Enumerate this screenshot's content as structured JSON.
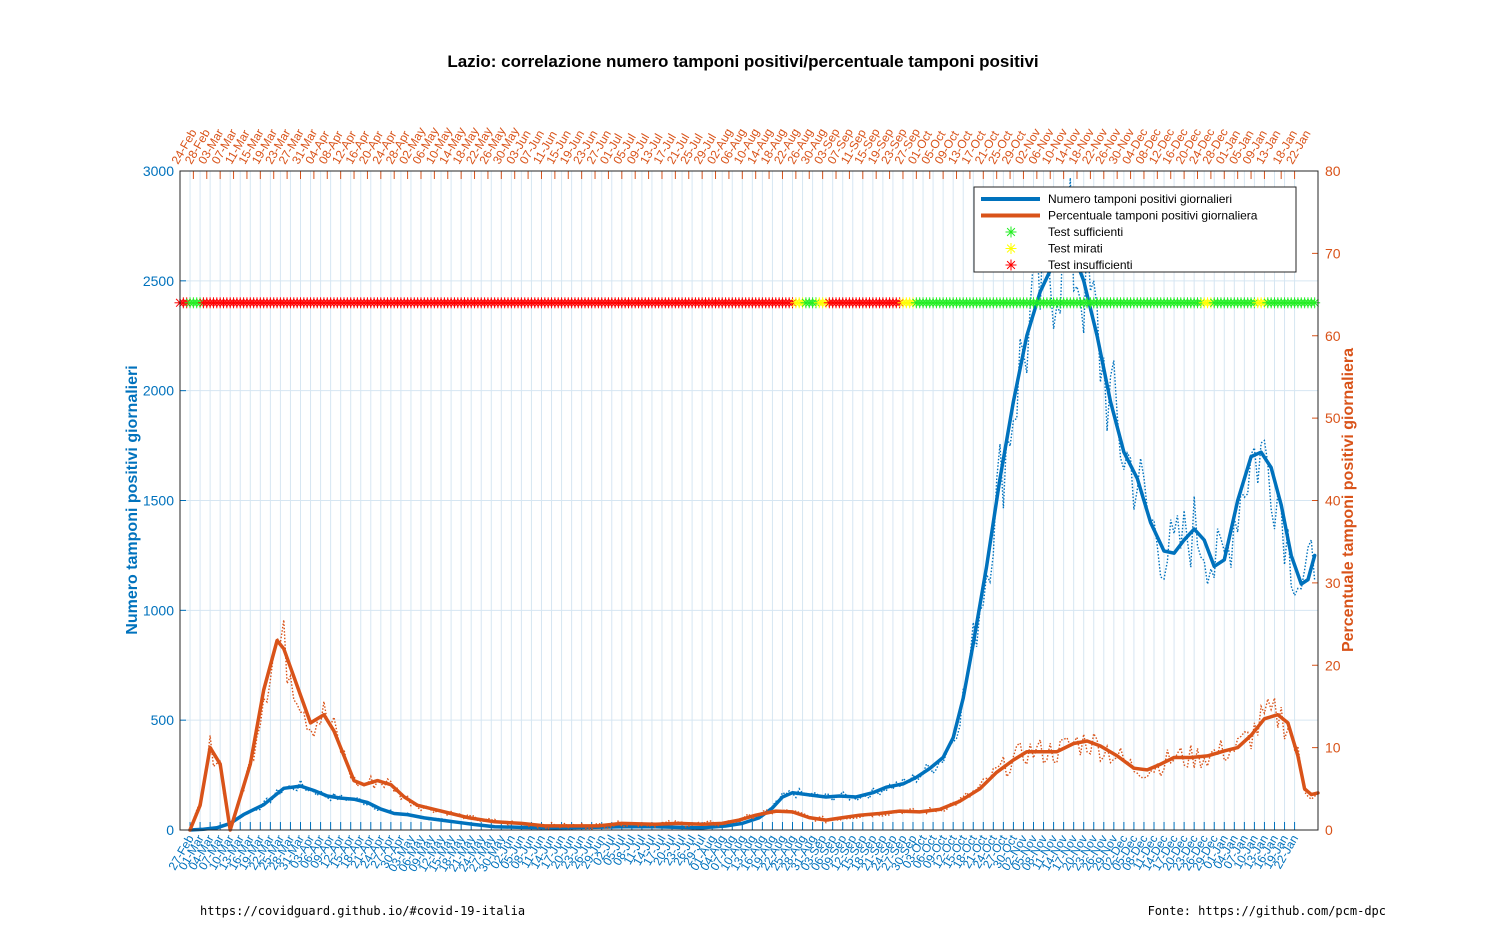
{
  "footer": {
    "left": "https://covidguard.github.io/#covid-19-italia",
    "right": "Fonte: https://github.com/pcm-dpc"
  },
  "colors": {
    "positivi": "#0072BD",
    "percentuale": "#D95319",
    "sufficienti": "#22ee22",
    "mirati": "#ffff00",
    "insufficienti": "#ff0000",
    "grid": "#d6e6f2"
  },
  "chart_data": {
    "type": "line",
    "title": "Lazio: correlazione numero tamponi positivi/percentuale tamponi positivi",
    "ylabel_left": "Numero tamponi positivi giornalieri",
    "ylabel_right": "Percentuale tamponi positivi giornaliera",
    "ylim_left": [
      0,
      3000
    ],
    "ylim_right": [
      0,
      80
    ],
    "yticks_left": [
      "0",
      "500",
      "1000",
      "1500",
      "2000",
      "2500",
      "3000"
    ],
    "yticks_right": [
      "0",
      "10",
      "20",
      "30",
      "40",
      "50",
      "60",
      "70",
      "80"
    ],
    "x_start": "2020-02-24",
    "x_end": "2021-01-22",
    "grid": true,
    "legend_position": "top-right",
    "legend": [
      "Numero tamponi positivi giornalieri",
      "Percentuale tamponi positivi giornaliera",
      "Test sufficienti",
      "Test mirati",
      "Test insufficienti"
    ],
    "xticks_bottom": [
      "27-Feb",
      "01-Mar",
      "04-Mar",
      "07-Mar",
      "10-Mar",
      "13-Mar",
      "16-Mar",
      "19-Mar",
      "22-Mar",
      "25-Mar",
      "28-Mar",
      "31-Mar",
      "03-Apr",
      "06-Apr",
      "09-Apr",
      "12-Apr",
      "15-Apr",
      "18-Apr",
      "21-Apr",
      "24-Apr",
      "27-Apr",
      "30-Apr",
      "03-May",
      "06-May",
      "09-May",
      "12-May",
      "15-May",
      "18-May",
      "21-May",
      "24-May",
      "27-May",
      "30-May",
      "02-Jun",
      "05-Jun",
      "08-Jun",
      "11-Jun",
      "14-Jun",
      "17-Jun",
      "20-Jun",
      "23-Jun",
      "26-Jun",
      "29-Jun",
      "02-Jul",
      "05-Jul",
      "08-Jul",
      "11-Jul",
      "14-Jul",
      "17-Jul",
      "20-Jul",
      "23-Jul",
      "26-Jul",
      "29-Jul",
      "01-Aug",
      "04-Aug",
      "07-Aug",
      "10-Aug",
      "13-Aug",
      "16-Aug",
      "19-Aug",
      "22-Aug",
      "25-Aug",
      "28-Aug",
      "31-Aug",
      "03-Sep",
      "06-Sep",
      "09-Sep",
      "12-Sep",
      "15-Sep",
      "18-Sep",
      "21-Sep",
      "24-Sep",
      "27-Sep",
      "30-Sep",
      "03-Oct",
      "06-Oct",
      "09-Oct",
      "12-Oct",
      "15-Oct",
      "18-Oct",
      "21-Oct",
      "24-Oct",
      "27-Oct",
      "30-Oct",
      "02-Nov",
      "05-Nov",
      "08-Nov",
      "11-Nov",
      "14-Nov",
      "17-Nov",
      "20-Nov",
      "23-Nov",
      "26-Nov",
      "29-Nov",
      "02-Dec",
      "05-Dec",
      "08-Dec",
      "11-Dec",
      "14-Dec",
      "17-Dec",
      "20-Dec",
      "23-Dec",
      "26-Dec",
      "29-Dec",
      "01-Jan",
      "04-Jan",
      "07-Jan",
      "10-Jan",
      "13-Jan",
      "16-Jan",
      "19-Jan",
      "22-Jan"
    ],
    "xticks_top": [
      "24-Feb",
      "28-Feb",
      "03-Mar",
      "07-Mar",
      "11-Mar",
      "15-Mar",
      "19-Mar",
      "23-Mar",
      "27-Mar",
      "31-Mar",
      "04-Apr",
      "08-Apr",
      "12-Apr",
      "16-Apr",
      "20-Apr",
      "24-Apr",
      "28-Apr",
      "02-May",
      "06-May",
      "10-May",
      "14-May",
      "18-May",
      "22-May",
      "26-May",
      "30-May",
      "03-Jun",
      "07-Jun",
      "11-Jun",
      "15-Jun",
      "19-Jun",
      "23-Jun",
      "27-Jun",
      "01-Jul",
      "05-Jul",
      "09-Jul",
      "13-Jul",
      "17-Jul",
      "21-Jul",
      "25-Jul",
      "29-Jul",
      "02-Aug",
      "06-Aug",
      "10-Aug",
      "14-Aug",
      "18-Aug",
      "22-Aug",
      "26-Aug",
      "30-Aug",
      "03-Sep",
      "07-Sep",
      "11-Sep",
      "15-Sep",
      "19-Sep",
      "23-Sep",
      "27-Sep",
      "01-Oct",
      "05-Oct",
      "09-Oct",
      "13-Oct",
      "17-Oct",
      "21-Oct",
      "25-Oct",
      "29-Oct",
      "02-Nov",
      "06-Nov",
      "10-Nov",
      "14-Nov",
      "18-Nov",
      "22-Nov",
      "26-Nov",
      "30-Nov",
      "04-Dec",
      "08-Dec",
      "12-Dec",
      "16-Dec",
      "20-Dec",
      "24-Dec",
      "28-Dec",
      "01-Jan",
      "05-Jan",
      "09-Jan",
      "13-Jan",
      "18-Jan",
      "22-Jan"
    ],
    "series": [
      {
        "name": "Numero tamponi positivi giornalieri",
        "axis": "left",
        "points": [
          [
            "2020-02-27",
            0
          ],
          [
            "2020-03-02",
            3
          ],
          [
            "2020-03-06",
            10
          ],
          [
            "2020-03-10",
            30
          ],
          [
            "2020-03-14",
            70
          ],
          [
            "2020-03-20",
            115
          ],
          [
            "2020-03-26",
            190
          ],
          [
            "2020-03-31",
            200
          ],
          [
            "2020-04-04",
            180
          ],
          [
            "2020-04-08",
            155
          ],
          [
            "2020-04-12",
            145
          ],
          [
            "2020-04-16",
            140
          ],
          [
            "2020-04-20",
            125
          ],
          [
            "2020-04-24",
            95
          ],
          [
            "2020-04-28",
            75
          ],
          [
            "2020-05-02",
            70
          ],
          [
            "2020-05-07",
            55
          ],
          [
            "2020-05-12",
            45
          ],
          [
            "2020-05-17",
            35
          ],
          [
            "2020-05-22",
            25
          ],
          [
            "2020-05-28",
            15
          ],
          [
            "2020-06-05",
            12
          ],
          [
            "2020-06-15",
            10
          ],
          [
            "2020-06-25",
            12
          ],
          [
            "2020-07-05",
            15
          ],
          [
            "2020-07-15",
            15
          ],
          [
            "2020-07-22",
            12
          ],
          [
            "2020-07-29",
            10
          ],
          [
            "2020-08-05",
            18
          ],
          [
            "2020-08-10",
            30
          ],
          [
            "2020-08-15",
            55
          ],
          [
            "2020-08-19",
            100
          ],
          [
            "2020-08-22",
            150
          ],
          [
            "2020-08-25",
            170
          ],
          [
            "2020-08-30",
            160
          ],
          [
            "2020-09-04",
            150
          ],
          [
            "2020-09-08",
            155
          ],
          [
            "2020-09-13",
            150
          ],
          [
            "2020-09-18",
            170
          ],
          [
            "2020-09-22",
            195
          ],
          [
            "2020-09-27",
            210
          ],
          [
            "2020-10-01",
            240
          ],
          [
            "2020-10-05",
            280
          ],
          [
            "2020-10-09",
            330
          ],
          [
            "2020-10-12",
            420
          ],
          [
            "2020-10-15",
            600
          ],
          [
            "2020-10-18",
            850
          ],
          [
            "2020-10-22",
            1200
          ],
          [
            "2020-10-26",
            1600
          ],
          [
            "2020-10-30",
            1950
          ],
          [
            "2020-11-03",
            2250
          ],
          [
            "2020-11-07",
            2450
          ],
          [
            "2020-11-11",
            2580
          ],
          [
            "2020-11-14",
            2640
          ],
          [
            "2020-11-17",
            2620
          ],
          [
            "2020-11-20",
            2500
          ],
          [
            "2020-11-24",
            2250
          ],
          [
            "2020-11-28",
            1950
          ],
          [
            "2020-12-02",
            1720
          ],
          [
            "2020-12-06",
            1600
          ],
          [
            "2020-12-10",
            1400
          ],
          [
            "2020-12-14",
            1270
          ],
          [
            "2020-12-17",
            1260
          ],
          [
            "2020-12-20",
            1320
          ],
          [
            "2020-12-23",
            1370
          ],
          [
            "2020-12-26",
            1320
          ],
          [
            "2020-12-29",
            1200
          ],
          [
            "2021-01-01",
            1230
          ],
          [
            "2021-01-05",
            1500
          ],
          [
            "2021-01-09",
            1700
          ],
          [
            "2021-01-12",
            1720
          ],
          [
            "2021-01-15",
            1650
          ],
          [
            "2021-01-18",
            1480
          ],
          [
            "2021-01-21",
            1250
          ],
          [
            "2021-01-24",
            1120
          ],
          [
            "2021-01-26",
            1140
          ],
          [
            "2021-01-28",
            1250
          ]
        ]
      },
      {
        "name": "Percentuale tamponi positivi giornaliera",
        "axis": "right",
        "points": [
          [
            "2020-02-27",
            0
          ],
          [
            "2020-03-01",
            3
          ],
          [
            "2020-03-04",
            10
          ],
          [
            "2020-03-07",
            8
          ],
          [
            "2020-03-10",
            0
          ],
          [
            "2020-03-16",
            8
          ],
          [
            "2020-03-20",
            17
          ],
          [
            "2020-03-24",
            23
          ],
          [
            "2020-03-26",
            22
          ],
          [
            "2020-04-03",
            13
          ],
          [
            "2020-04-07",
            14
          ],
          [
            "2020-04-10",
            12
          ],
          [
            "2020-04-13",
            9
          ],
          [
            "2020-04-16",
            6
          ],
          [
            "2020-04-19",
            5.5
          ],
          [
            "2020-04-23",
            6
          ],
          [
            "2020-04-27",
            5.5
          ],
          [
            "2020-05-01",
            4
          ],
          [
            "2020-05-05",
            3
          ],
          [
            "2020-05-10",
            2.5
          ],
          [
            "2020-05-15",
            2
          ],
          [
            "2020-05-20",
            1.5
          ],
          [
            "2020-05-28",
            1
          ],
          [
            "2020-06-05",
            0.8
          ],
          [
            "2020-06-12",
            0.5
          ],
          [
            "2020-06-20",
            0.5
          ],
          [
            "2020-06-28",
            0.5
          ],
          [
            "2020-07-05",
            0.8
          ],
          [
            "2020-07-15",
            0.7
          ],
          [
            "2020-07-22",
            0.8
          ],
          [
            "2020-07-29",
            0.7
          ],
          [
            "2020-08-04",
            0.8
          ],
          [
            "2020-08-09",
            1.2
          ],
          [
            "2020-08-14",
            1.8
          ],
          [
            "2020-08-20",
            2.3
          ],
          [
            "2020-08-25",
            2.2
          ],
          [
            "2020-08-30",
            1.5
          ],
          [
            "2020-09-04",
            1.2
          ],
          [
            "2020-09-09",
            1.5
          ],
          [
            "2020-09-14",
            1.8
          ],
          [
            "2020-09-20",
            2
          ],
          [
            "2020-09-26",
            2.3
          ],
          [
            "2020-10-02",
            2.2
          ],
          [
            "2020-10-08",
            2.5
          ],
          [
            "2020-10-14",
            3.5
          ],
          [
            "2020-10-20",
            5
          ],
          [
            "2020-10-25",
            7
          ],
          [
            "2020-10-30",
            8.5
          ],
          [
            "2020-11-03",
            9.5
          ],
          [
            "2020-11-08",
            9.5
          ],
          [
            "2020-11-12",
            9.5
          ],
          [
            "2020-11-17",
            10.5
          ],
          [
            "2020-11-21",
            10.8
          ],
          [
            "2020-11-25",
            10.2
          ],
          [
            "2020-11-30",
            9
          ],
          [
            "2020-12-05",
            7.5
          ],
          [
            "2020-12-09",
            7.3
          ],
          [
            "2020-12-13",
            8
          ],
          [
            "2020-12-17",
            8.8
          ],
          [
            "2020-12-22",
            8.8
          ],
          [
            "2020-12-27",
            9
          ],
          [
            "2021-01-01",
            9.6
          ],
          [
            "2021-01-05",
            10
          ],
          [
            "2021-01-09",
            11.5
          ],
          [
            "2021-01-13",
            13.5
          ],
          [
            "2021-01-17",
            14
          ],
          [
            "2021-01-20",
            13
          ],
          [
            "2021-01-23",
            9
          ],
          [
            "2021-01-25",
            5
          ],
          [
            "2021-01-27",
            4.3
          ],
          [
            "2021-01-29",
            4.5
          ]
        ]
      }
    ],
    "test_status": {
      "y_value": 2400,
      "segments": [
        {
          "from": "2020-02-24",
          "to": "2020-02-26",
          "status": "insufficienti"
        },
        {
          "from": "2020-02-27",
          "to": "2020-03-01",
          "status": "sufficienti"
        },
        {
          "from": "2020-03-02",
          "to": "2020-08-25",
          "status": "insufficienti"
        },
        {
          "from": "2020-08-26",
          "to": "2020-08-28",
          "status": "mirati"
        },
        {
          "from": "2020-08-29",
          "to": "2020-09-01",
          "status": "sufficienti"
        },
        {
          "from": "2020-09-02",
          "to": "2020-09-04",
          "status": "mirati"
        },
        {
          "from": "2020-09-05",
          "to": "2020-09-26",
          "status": "insufficienti"
        },
        {
          "from": "2020-09-27",
          "to": "2020-09-30",
          "status": "mirati"
        },
        {
          "from": "2020-10-01",
          "to": "2020-12-25",
          "status": "sufficienti"
        },
        {
          "from": "2020-12-26",
          "to": "2020-12-28",
          "status": "mirati"
        },
        {
          "from": "2020-12-29",
          "to": "2021-01-10",
          "status": "sufficienti"
        },
        {
          "from": "2021-01-11",
          "to": "2021-01-13",
          "status": "mirati"
        },
        {
          "from": "2021-01-14",
          "to": "2021-01-28",
          "status": "sufficienti"
        }
      ]
    }
  }
}
